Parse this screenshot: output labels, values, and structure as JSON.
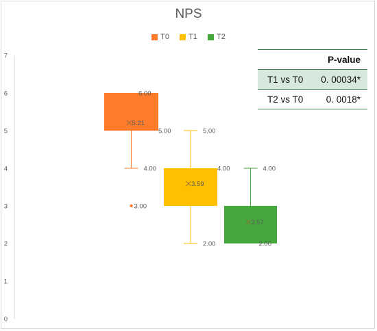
{
  "chart_data": {
    "type": "boxplot",
    "title": "NPS",
    "xlabel": "",
    "ylabel": "",
    "ylim": [
      0,
      7
    ],
    "yticks": [
      0,
      1,
      2,
      3,
      4,
      5,
      6,
      7
    ],
    "grid": false,
    "legend_position": "top",
    "series": [
      {
        "name": "T0",
        "color": "#fe7c2b",
        "min": 4,
        "q1": 5,
        "median": 6,
        "q3": 6,
        "max": 6,
        "mean": 5.21,
        "outliers": [
          3
        ],
        "labels": {
          "q3": "6.00",
          "q1": "5.00",
          "min": "4.00",
          "mean": "5.21",
          "outlier": "3.00"
        }
      },
      {
        "name": "T1",
        "color": "#ffc000",
        "min": 2,
        "q1": 3,
        "median": 4,
        "q3": 4,
        "max": 5,
        "mean": 3.59,
        "outliers": [],
        "labels": {
          "max": "5.00",
          "q3": "4.00",
          "mean": "3.59",
          "min": "2.00"
        }
      },
      {
        "name": "T2",
        "color": "#45a83c",
        "min": 2,
        "q1": 2,
        "median": 3,
        "q3": 3,
        "max": 4,
        "mean": 2.57,
        "outliers": [],
        "labels": {
          "max": "4.00",
          "mean": "2.57",
          "q1": "2.00"
        }
      }
    ],
    "table": {
      "header": "P-value",
      "rows": [
        {
          "label": "T1 vs T0",
          "value": "0. 00034*"
        },
        {
          "label": "T2 vs T0",
          "value": "0. 0018*"
        }
      ]
    }
  }
}
